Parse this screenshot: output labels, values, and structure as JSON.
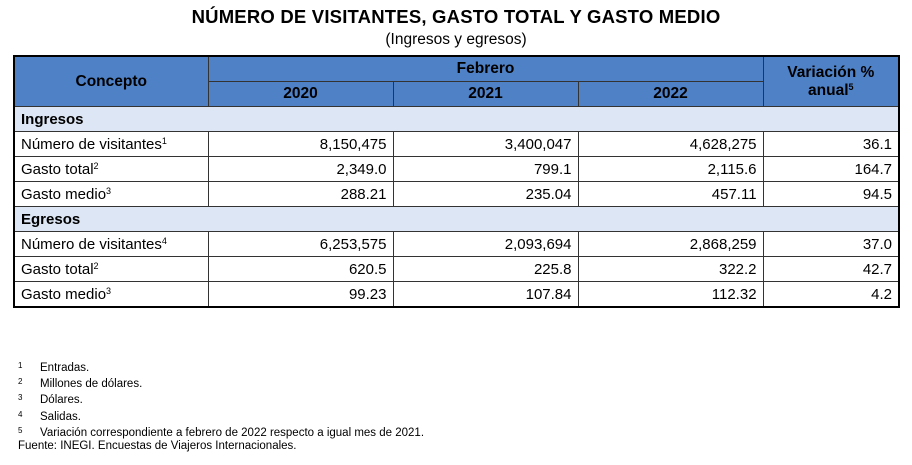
{
  "title": "NÚMERO DE VISITANTES, GASTO TOTAL Y GASTO MEDIO",
  "subtitle": "(Ingresos y egresos)",
  "header": {
    "concept": "Concepto",
    "month": "Febrero",
    "years": [
      "2020",
      "2021",
      "2022"
    ],
    "variation_line1": "Variación %",
    "variation_line2": "anual",
    "variation_sup": "5"
  },
  "sections": [
    {
      "name": "Ingresos",
      "rows": [
        {
          "label": "Número de visitantes",
          "sup": "1",
          "v2020": "8,150,475",
          "v2021": "3,400,047",
          "v2022": "4,628,275",
          "var": "36.1"
        },
        {
          "label": "Gasto total",
          "sup": "2",
          "v2020": "2,349.0",
          "v2021": "799.1",
          "v2022": "2,115.6",
          "var": "164.7"
        },
        {
          "label": "Gasto medio",
          "sup": "3",
          "v2020": "288.21",
          "v2021": "235.04",
          "v2022": "457.11",
          "var": "94.5"
        }
      ]
    },
    {
      "name": "Egresos",
      "rows": [
        {
          "label": "Número de visitantes",
          "sup": "4",
          "v2020": "6,253,575",
          "v2021": "2,093,694",
          "v2022": "2,868,259",
          "var": "37.0"
        },
        {
          "label": "Gasto total",
          "sup": "2",
          "v2020": "620.5",
          "v2021": "225.8",
          "v2022": "322.2",
          "var": "42.7"
        },
        {
          "label": "Gasto medio",
          "sup": "3",
          "v2020": "99.23",
          "v2021": "107.84",
          "v2022": "112.32",
          "var": "4.2"
        }
      ]
    }
  ],
  "notes": [
    {
      "n": "1",
      "text": "Entradas."
    },
    {
      "n": "2",
      "text": "Millones de dólares."
    },
    {
      "n": "3",
      "text": "Dólares."
    },
    {
      "n": "4",
      "text": "Salidas."
    },
    {
      "n": "5",
      "text": "Variación correspondiente a febrero de 2022 respecto a igual mes de 2021."
    }
  ],
  "source": "Fuente: INEGI. Encuestas de Viajeros Internacionales."
}
